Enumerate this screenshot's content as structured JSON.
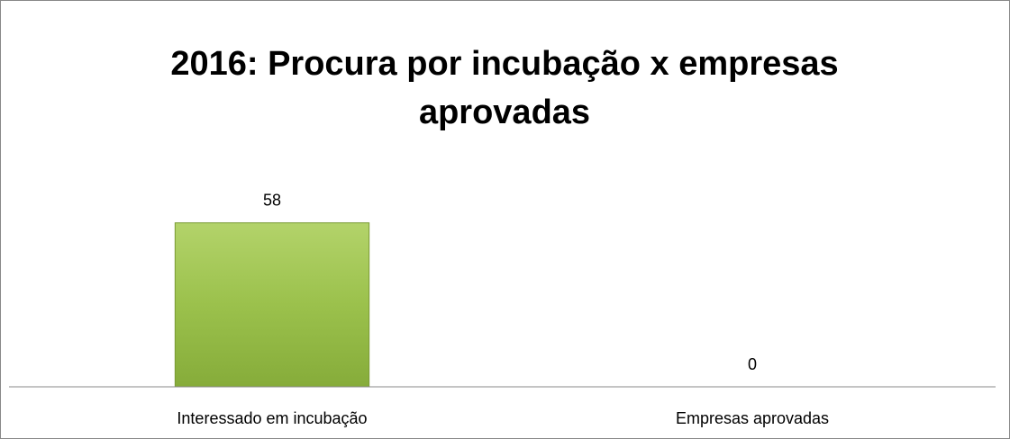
{
  "chart_data": {
    "type": "bar",
    "title": "2016: Procura por incubação x empresas aprovadas",
    "categories": [
      "Interessado em incubação",
      "Empresas aprovadas"
    ],
    "values": [
      58,
      0
    ],
    "color": "#9bbb59",
    "ylim": [
      0,
      70
    ]
  }
}
